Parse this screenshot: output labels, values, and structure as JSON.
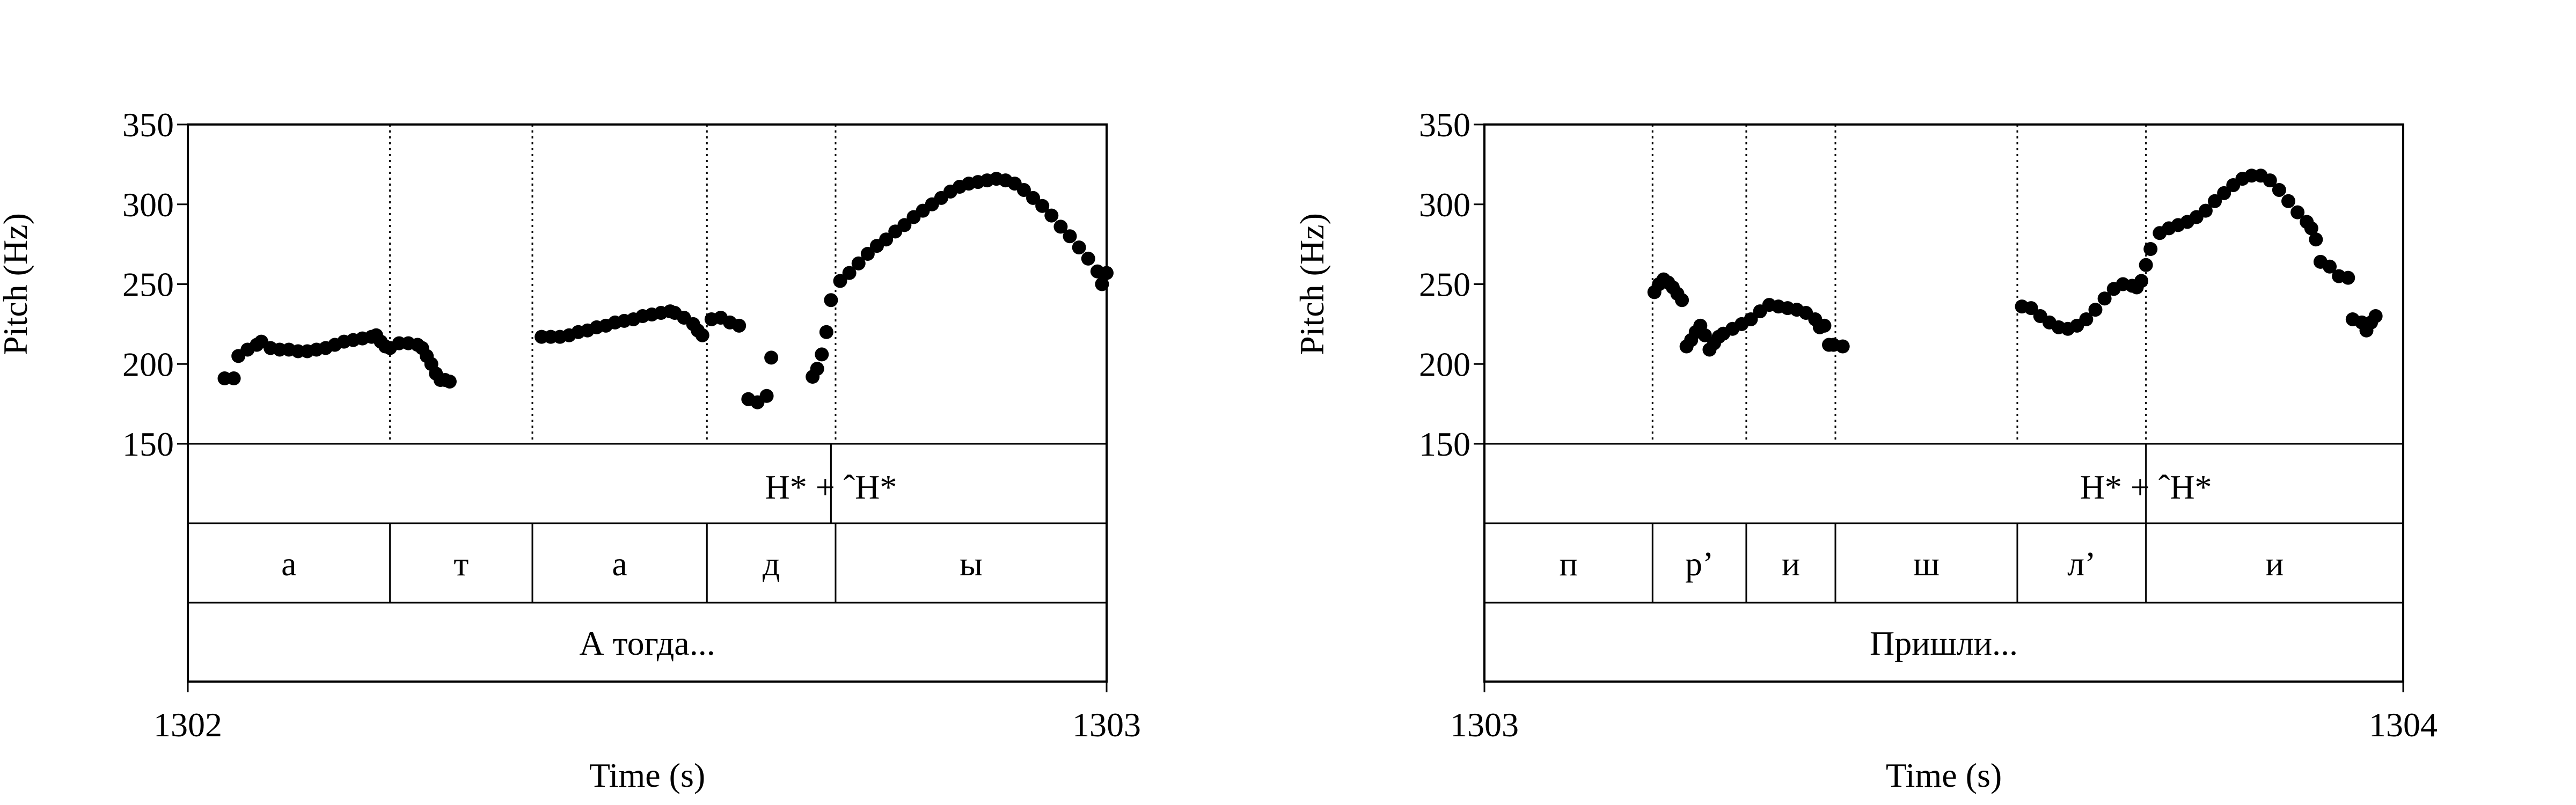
{
  "chart_data": [
    {
      "type": "scatter",
      "ylabel": "Pitch (Hz)",
      "xlabel": "Time (s)",
      "xlim": [
        1302,
        1303
      ],
      "ylim": [
        150,
        350
      ],
      "yticks": [
        150,
        200,
        250,
        300,
        350
      ],
      "xticks": [
        1302,
        1303
      ],
      "grid": false,
      "tone_tier": {
        "text": "H* + ˆH*",
        "anchor": 1302.7
      },
      "boundaries": [
        1302.22,
        1302.375,
        1302.565,
        1302.705
      ],
      "segments": [
        {
          "label": "а",
          "start": 1302.0,
          "end": 1302.22
        },
        {
          "label": "т",
          "start": 1302.22,
          "end": 1302.375
        },
        {
          "label": "а",
          "start": 1302.375,
          "end": 1302.565
        },
        {
          "label": "д",
          "start": 1302.565,
          "end": 1302.705
        },
        {
          "label": "ы",
          "start": 1302.705,
          "end": 1303.0
        }
      ],
      "words_tier": "А тогда...",
      "series": [
        {
          "values": [
            [
              1302.04,
              191
            ],
            [
              1302.05,
              191
            ],
            [
              1302.055,
              205
            ],
            [
              1302.065,
              209
            ],
            [
              1302.075,
              212
            ],
            [
              1302.08,
              214
            ],
            [
              1302.09,
              210
            ],
            [
              1302.1,
              209
            ],
            [
              1302.11,
              209
            ],
            [
              1302.12,
              208
            ],
            [
              1302.13,
              208
            ],
            [
              1302.14,
              209
            ],
            [
              1302.15,
              210
            ],
            [
              1302.16,
              212
            ],
            [
              1302.17,
              214
            ],
            [
              1302.18,
              215
            ],
            [
              1302.19,
              216
            ],
            [
              1302.2,
              217
            ],
            [
              1302.205,
              218
            ],
            [
              1302.21,
              214
            ],
            [
              1302.215,
              211
            ],
            [
              1302.22,
              210
            ],
            [
              1302.23,
              213
            ],
            [
              1302.24,
              213
            ],
            [
              1302.25,
              212
            ],
            [
              1302.255,
              210
            ],
            [
              1302.26,
              205
            ],
            [
              1302.265,
              200
            ],
            [
              1302.27,
              194
            ],
            [
              1302.275,
              190
            ],
            [
              1302.28,
              190
            ],
            [
              1302.285,
              189
            ],
            [
              1302.385,
              217
            ],
            [
              1302.395,
              217
            ],
            [
              1302.405,
              217
            ],
            [
              1302.415,
              218
            ],
            [
              1302.425,
              220
            ],
            [
              1302.435,
              221
            ],
            [
              1302.445,
              223
            ],
            [
              1302.455,
              224
            ],
            [
              1302.465,
              226
            ],
            [
              1302.475,
              227
            ],
            [
              1302.485,
              228
            ],
            [
              1302.495,
              230
            ],
            [
              1302.505,
              231
            ],
            [
              1302.515,
              232
            ],
            [
              1302.525,
              233
            ],
            [
              1302.53,
              232
            ],
            [
              1302.54,
              229
            ],
            [
              1302.55,
              225
            ],
            [
              1302.555,
              221
            ],
            [
              1302.56,
              218
            ],
            [
              1302.57,
              228
            ],
            [
              1302.58,
              229
            ],
            [
              1302.59,
              226
            ],
            [
              1302.6,
              224
            ],
            [
              1302.61,
              178
            ],
            [
              1302.62,
              176
            ],
            [
              1302.63,
              180
            ],
            [
              1302.635,
              204
            ],
            [
              1302.68,
              192
            ],
            [
              1302.685,
              197
            ],
            [
              1302.69,
              206
            ],
            [
              1302.695,
              220
            ],
            [
              1302.7,
              240
            ],
            [
              1302.71,
              252
            ],
            [
              1302.72,
              257
            ],
            [
              1302.73,
              263
            ],
            [
              1302.74,
              269
            ],
            [
              1302.75,
              274
            ],
            [
              1302.76,
              278
            ],
            [
              1302.77,
              283
            ],
            [
              1302.78,
              287
            ],
            [
              1302.79,
              292
            ],
            [
              1302.8,
              296
            ],
            [
              1302.81,
              300
            ],
            [
              1302.82,
              304
            ],
            [
              1302.83,
              308
            ],
            [
              1302.84,
              311
            ],
            [
              1302.85,
              313
            ],
            [
              1302.86,
              314
            ],
            [
              1302.87,
              315
            ],
            [
              1302.88,
              316
            ],
            [
              1302.89,
              315
            ],
            [
              1302.9,
              313
            ],
            [
              1302.91,
              309
            ],
            [
              1302.92,
              304
            ],
            [
              1302.93,
              299
            ],
            [
              1302.94,
              293
            ],
            [
              1302.95,
              286
            ],
            [
              1302.96,
              280
            ],
            [
              1302.97,
              273
            ],
            [
              1302.98,
              266
            ],
            [
              1302.99,
              258
            ],
            [
              1302.995,
              250
            ],
            [
              1303.0,
              257
            ]
          ]
        }
      ]
    },
    {
      "type": "scatter",
      "ylabel": "Pitch (Hz)",
      "xlabel": "Time (s)",
      "xlim": [
        1303,
        1304
      ],
      "ylim": [
        150,
        350
      ],
      "yticks": [
        150,
        200,
        250,
        300,
        350
      ],
      "xticks": [
        1303,
        1304
      ],
      "grid": false,
      "tone_tier": {
        "text": "H* + ˆH*",
        "anchor": 1303.72
      },
      "boundaries": [
        1303.183,
        1303.285,
        1303.382,
        1303.58,
        1303.72
      ],
      "segments": [
        {
          "label": "п",
          "start": 1303.0,
          "end": 1303.183
        },
        {
          "label": "р’",
          "start": 1303.183,
          "end": 1303.285
        },
        {
          "label": "и",
          "start": 1303.285,
          "end": 1303.382
        },
        {
          "label": "ш",
          "start": 1303.382,
          "end": 1303.58
        },
        {
          "label": "л’",
          "start": 1303.58,
          "end": 1303.72
        },
        {
          "label": "и",
          "start": 1303.72,
          "end": 1304.0
        }
      ],
      "words_tier": "Пришли...",
      "series": [
        {
          "values": [
            [
              1303.185,
              245
            ],
            [
              1303.19,
              250
            ],
            [
              1303.195,
              253
            ],
            [
              1303.2,
              251
            ],
            [
              1303.205,
              248
            ],
            [
              1303.21,
              244
            ],
            [
              1303.215,
              240
            ],
            [
              1303.22,
              211
            ],
            [
              1303.225,
              215
            ],
            [
              1303.23,
              220
            ],
            [
              1303.235,
              224
            ],
            [
              1303.24,
              218
            ],
            [
              1303.245,
              209
            ],
            [
              1303.25,
              213
            ],
            [
              1303.255,
              217
            ],
            [
              1303.26,
              219
            ],
            [
              1303.27,
              222
            ],
            [
              1303.28,
              225
            ],
            [
              1303.29,
              228
            ],
            [
              1303.3,
              233
            ],
            [
              1303.31,
              237
            ],
            [
              1303.32,
              236
            ],
            [
              1303.33,
              235
            ],
            [
              1303.34,
              234
            ],
            [
              1303.35,
              232
            ],
            [
              1303.36,
              228
            ],
            [
              1303.365,
              223
            ],
            [
              1303.37,
              224
            ],
            [
              1303.375,
              212
            ],
            [
              1303.38,
              212
            ],
            [
              1303.39,
              211
            ],
            [
              1303.585,
              236
            ],
            [
              1303.595,
              235
            ],
            [
              1303.605,
              230
            ],
            [
              1303.615,
              226
            ],
            [
              1303.625,
              223
            ],
            [
              1303.635,
              222
            ],
            [
              1303.645,
              224
            ],
            [
              1303.655,
              228
            ],
            [
              1303.665,
              234
            ],
            [
              1303.675,
              241
            ],
            [
              1303.685,
              247
            ],
            [
              1303.695,
              250
            ],
            [
              1303.705,
              249
            ],
            [
              1303.71,
              248
            ],
            [
              1303.715,
              252
            ],
            [
              1303.72,
              262
            ],
            [
              1303.725,
              272
            ],
            [
              1303.735,
              282
            ],
            [
              1303.745,
              285
            ],
            [
              1303.755,
              287
            ],
            [
              1303.765,
              289
            ],
            [
              1303.775,
              292
            ],
            [
              1303.785,
              296
            ],
            [
              1303.795,
              302
            ],
            [
              1303.805,
              307
            ],
            [
              1303.815,
              312
            ],
            [
              1303.825,
              316
            ],
            [
              1303.835,
              318
            ],
            [
              1303.845,
              318
            ],
            [
              1303.855,
              315
            ],
            [
              1303.865,
              309
            ],
            [
              1303.875,
              302
            ],
            [
              1303.885,
              295
            ],
            [
              1303.895,
              289
            ],
            [
              1303.9,
              285
            ],
            [
              1303.905,
              278
            ],
            [
              1303.91,
              264
            ],
            [
              1303.92,
              261
            ],
            [
              1303.93,
              255
            ],
            [
              1303.94,
              254
            ],
            [
              1303.945,
              228
            ],
            [
              1303.955,
              226
            ],
            [
              1303.96,
              221
            ],
            [
              1303.965,
              226
            ],
            [
              1303.97,
              230
            ]
          ]
        }
      ]
    }
  ]
}
